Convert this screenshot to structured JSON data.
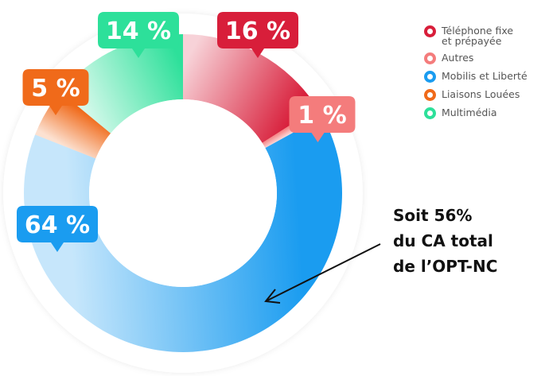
{
  "chart_data": {
    "type": "donut",
    "series": [
      {
        "name": "Téléphone fixe et prépayée",
        "color": "#d81e3a",
        "values": [
          16
        ],
        "value_labels": [
          "16 %"
        ]
      },
      {
        "name": "Autres",
        "color": "#f47c7c",
        "values": [
          1
        ],
        "value_labels": [
          "1 %"
        ]
      },
      {
        "name": "Mobilis et Liberté",
        "color": "#1a9cf0",
        "values": [
          64
        ],
        "value_labels": [
          "64 %"
        ]
      },
      {
        "name": "Liaisons Louées",
        "color": "#f06a1a",
        "values": [
          5
        ],
        "value_labels": [
          "5 %"
        ]
      },
      {
        "name": "Multimédia",
        "color": "#2de09a",
        "values": [
          14
        ],
        "value_labels": [
          "14 %"
        ]
      }
    ],
    "annotation": [
      "Soit 56%",
      "du CA total",
      "de l’OPT-NC"
    ]
  }
}
